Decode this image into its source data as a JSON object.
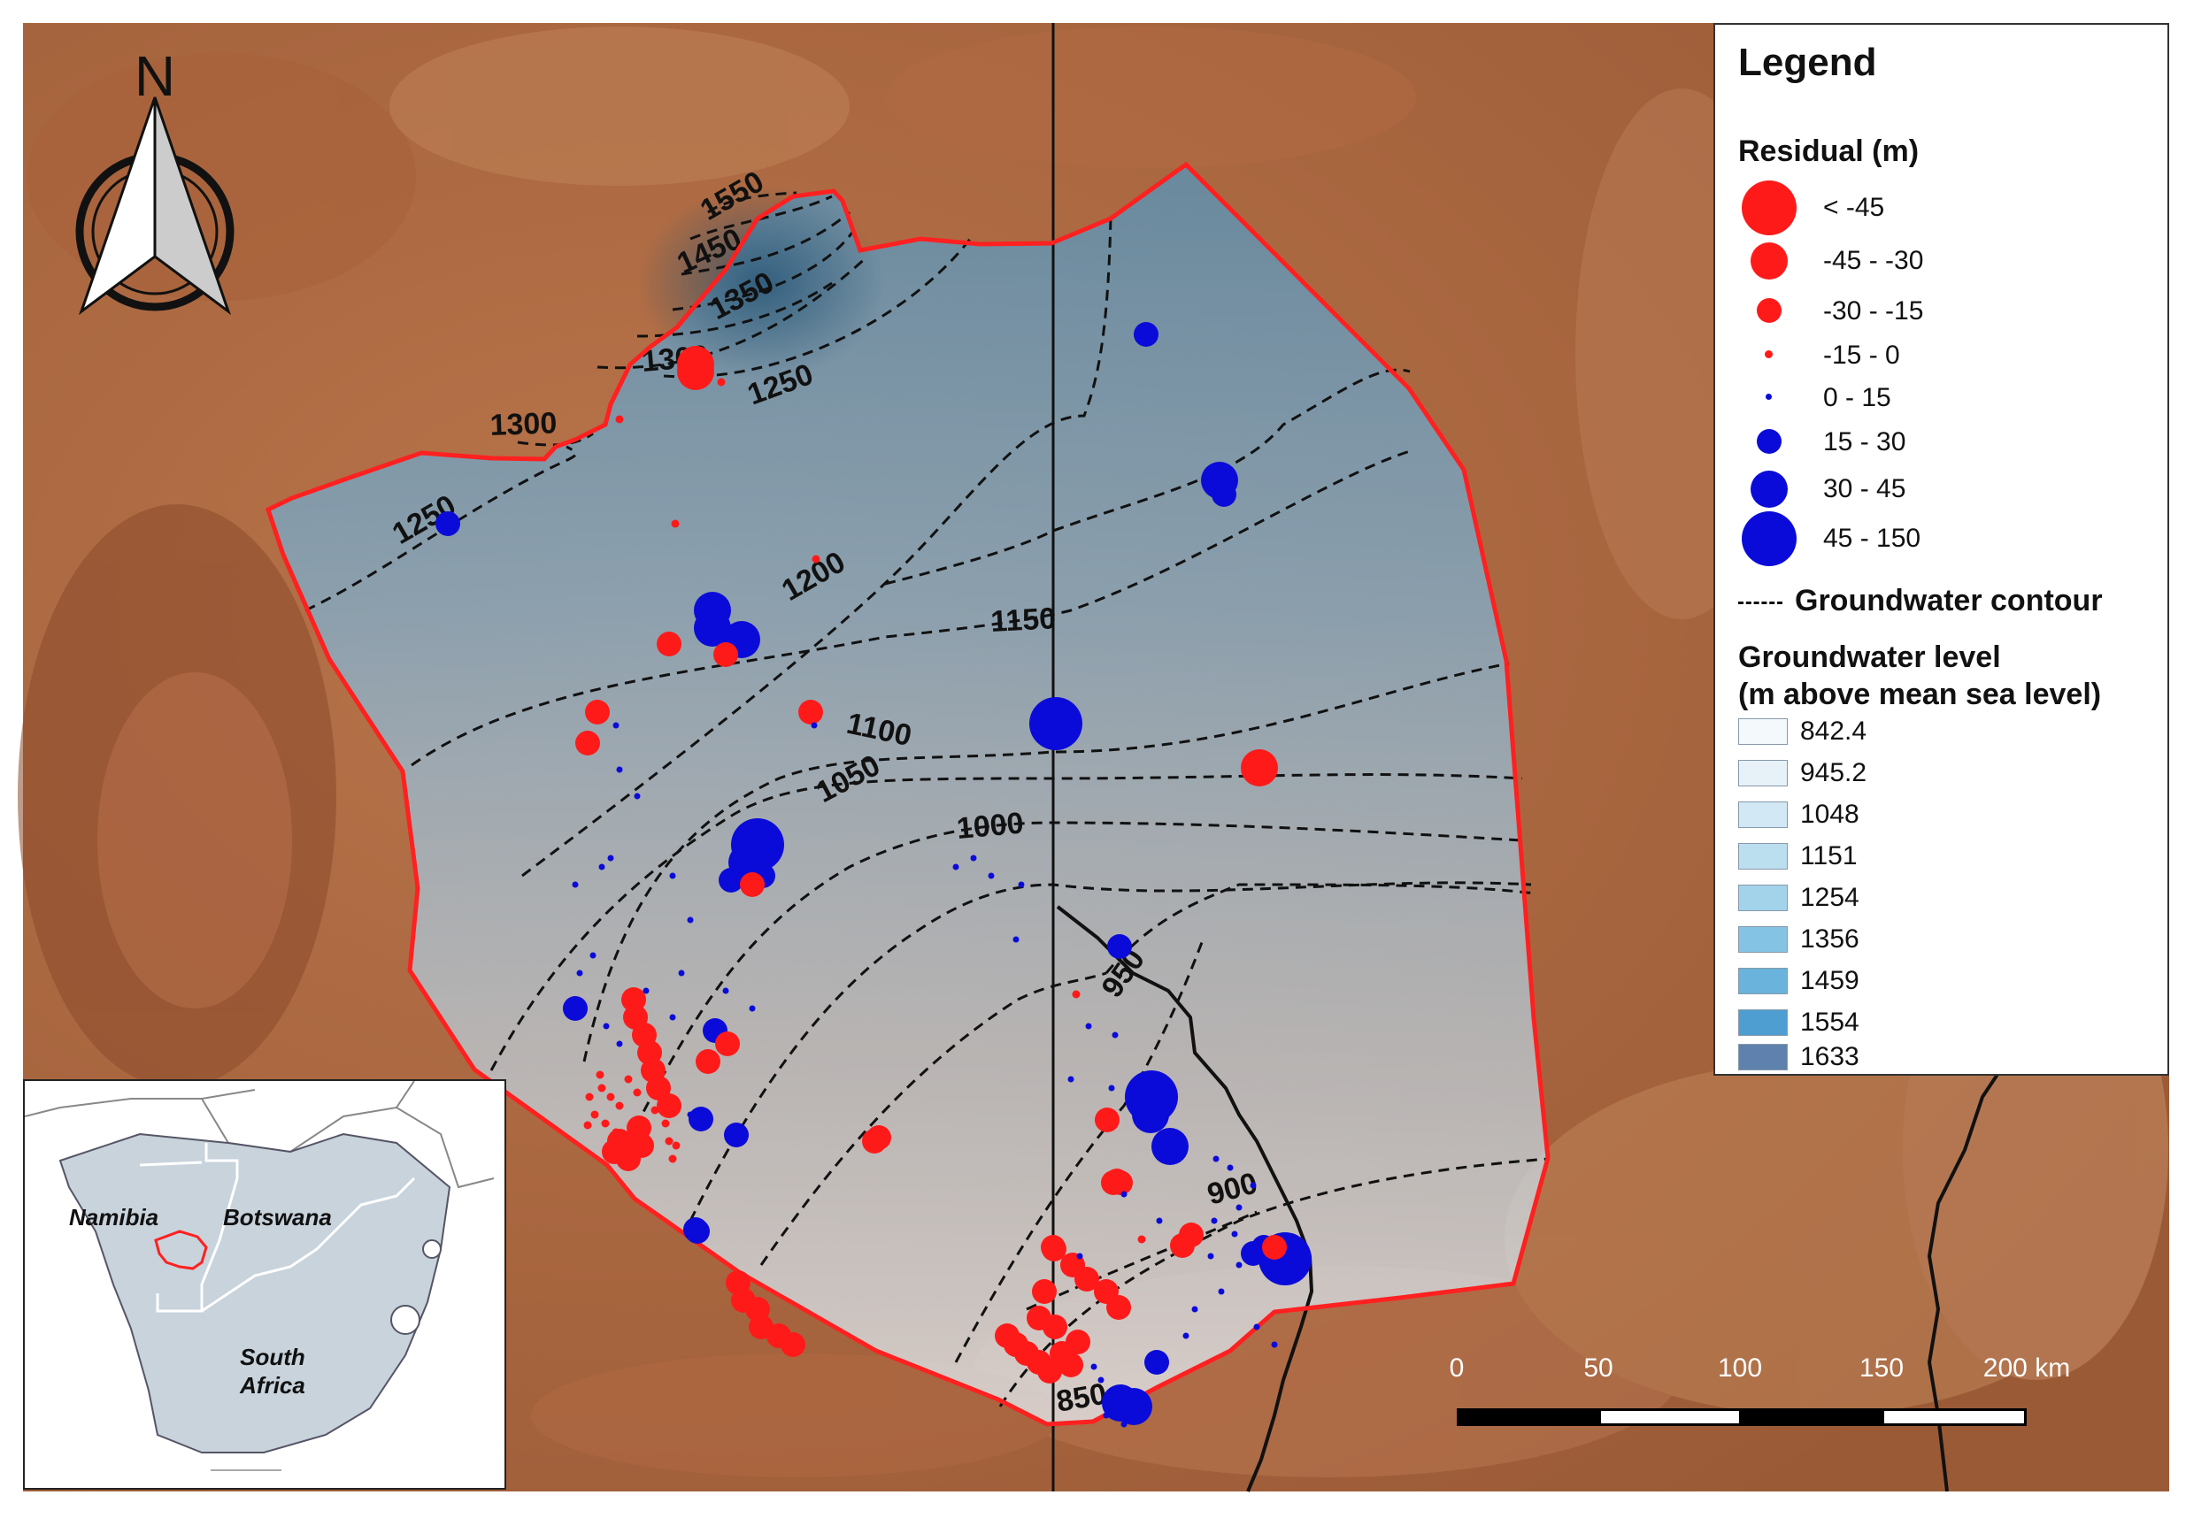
{
  "north_arrow": {
    "label": "N"
  },
  "legend": {
    "title": "Legend",
    "residual_heading": "Residual (m)",
    "residual_classes": [
      {
        "label": "< -45",
        "color": "#ff1a1a"
      },
      {
        "label": "-45 - -30",
        "color": "#ff1a1a"
      },
      {
        "label": "-30 - -15",
        "color": "#ff1a1a"
      },
      {
        "label": "-15 - 0",
        "color": "#ff1a1a"
      },
      {
        "label": "0 - 15",
        "color": "#0b0bd9"
      },
      {
        "label": "15 - 30",
        "color": "#0b0bd9"
      },
      {
        "label": "30 - 45",
        "color": "#0b0bd9"
      },
      {
        "label": "45 - 150",
        "color": "#0b0bd9"
      }
    ],
    "contour_label": "Groundwater contour",
    "level_heading_line1": "Groundwater level",
    "level_heading_line2": "(m above mean sea level)",
    "level_classes": [
      {
        "label": "842.4",
        "color": "#f4f9fc"
      },
      {
        "label": "945.2",
        "color": "#e6f1f8"
      },
      {
        "label": "1048",
        "color": "#d2e8f4"
      },
      {
        "label": "1151",
        "color": "#bcdff0"
      },
      {
        "label": "1254",
        "color": "#a3d3eb"
      },
      {
        "label": "1356",
        "color": "#84c3e4"
      },
      {
        "label": "1459",
        "color": "#69b3dc"
      },
      {
        "label": "1554",
        "color": "#4f9ed1"
      },
      {
        "label": "1633",
        "color": "#5e82ad"
      }
    ]
  },
  "contour_labels": [
    "1550",
    "1450",
    "1350",
    "1300",
    "1250",
    "1300",
    "1250",
    "1200",
    "1150",
    "1100",
    "1050",
    "1000",
    "950",
    "900",
    "850"
  ],
  "scale_bar": {
    "labels": [
      "0",
      "50",
      "100",
      "150",
      "200 km"
    ]
  },
  "inset": {
    "countries": [
      "Namibia",
      "Botswana",
      "South Africa"
    ]
  },
  "colors": {
    "study_area_outline": "#ff2020",
    "positive_residual": "#0b0bd9",
    "negative_residual": "#ff1a1a"
  }
}
